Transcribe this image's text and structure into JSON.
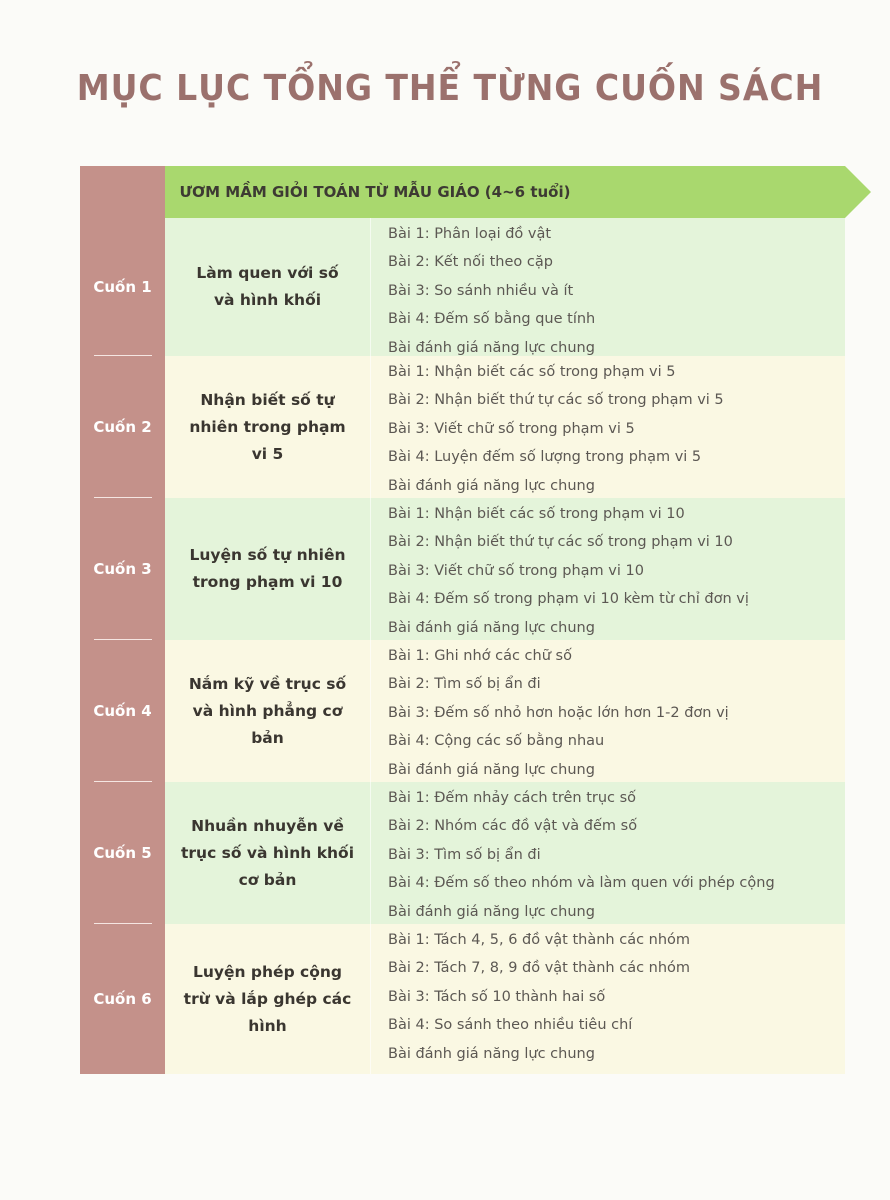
{
  "page_title": "MỤC LỤC TỔNG THỂ TỪNG CUỐN SÁCH",
  "series_title": "ƯƠM MẦM GIỎI TOÁN TỪ MẪU GIÁO (4~6 tuổi)",
  "colors": {
    "title": "#9b716d",
    "left_column": "#c4918a",
    "header": "#a9d86e",
    "row_green": "#e4f4da",
    "row_cream": "#faf8e3"
  },
  "books": [
    {
      "label": "Cuốn 1",
      "name": "Làm quen với số và hình khối",
      "lessons": [
        "Bài 1: Phân loại đồ vật",
        "Bài 2: Kết nối theo cặp",
        "Bài 3: So sánh nhiều và ít",
        "Bài 4: Đếm số bằng que tính",
        "Bài đánh giá năng lực chung"
      ]
    },
    {
      "label": "Cuốn 2",
      "name": "Nhận biết số tự nhiên trong phạm vi 5",
      "lessons": [
        "Bài 1: Nhận biết các số trong phạm vi 5",
        "Bài 2: Nhận biết thứ tự các số trong phạm vi 5",
        "Bài 3: Viết chữ số trong phạm vi 5",
        "Bài 4: Luyện đếm số lượng trong phạm vi 5",
        "Bài đánh giá năng lực chung"
      ]
    },
    {
      "label": "Cuốn 3",
      "name": "Luyện số tự nhiên trong phạm vi 10",
      "lessons": [
        "Bài 1: Nhận biết các số trong phạm vi 10",
        "Bài 2: Nhận biết thứ tự các số trong phạm vi 10",
        "Bài 3: Viết chữ số trong phạm vi 10",
        "Bài 4: Đếm số trong phạm vi 10 kèm từ chỉ đơn vị",
        "Bài đánh giá năng lực chung"
      ]
    },
    {
      "label": "Cuốn 4",
      "name": "Nắm kỹ về trục số và hình phẳng cơ bản",
      "lessons": [
        "Bài 1: Ghi nhớ các chữ số",
        "Bài 2: Tìm số bị ẩn đi",
        "Bài 3: Đếm số nhỏ hơn hoặc lớn hơn 1-2 đơn vị",
        "Bài 4: Cộng các số bằng nhau",
        "Bài đánh giá năng lực chung"
      ]
    },
    {
      "label": "Cuốn 5",
      "name": "Nhuần nhuyễn về trục số và hình khối cơ bản",
      "lessons": [
        "Bài 1: Đếm nhảy cách trên trục số",
        "Bài 2: Nhóm các đồ vật và đếm số",
        "Bài 3: Tìm số bị ẩn đi",
        "Bài 4: Đếm số theo nhóm và làm quen với phép cộng",
        "Bài đánh giá năng lực chung"
      ]
    },
    {
      "label": "Cuốn 6",
      "name": "Luyện phép cộng trừ và lắp ghép các hình",
      "lessons": [
        "Bài 1: Tách 4, 5, 6 đồ vật thành các nhóm",
        "Bài 2: Tách 7, 8, 9 đồ vật thành các nhóm",
        "Bài 3: Tách số 10 thành hai số",
        "Bài 4: So sánh theo nhiều tiêu chí",
        "Bài đánh giá năng lực chung"
      ]
    }
  ]
}
